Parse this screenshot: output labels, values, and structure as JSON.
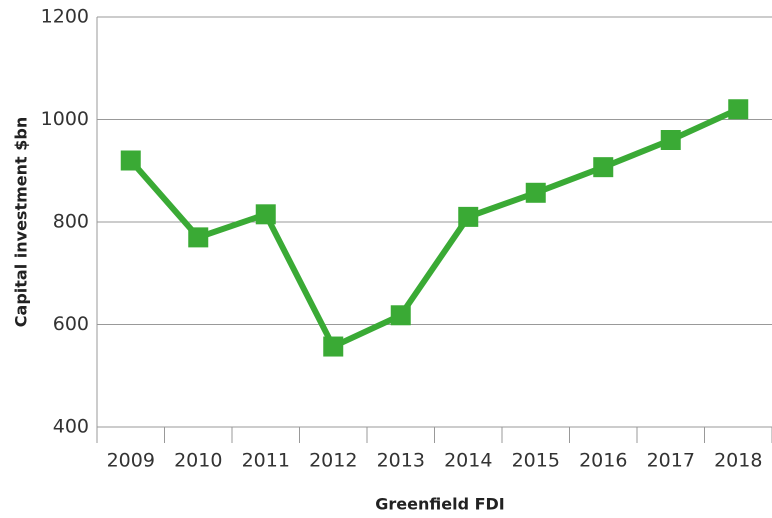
{
  "chart_data": {
    "type": "line",
    "y_label": "Capital investment $bn",
    "x_label": "Greenfield FDI",
    "categories": [
      "2009",
      "2010",
      "2011",
      "2012",
      "2013",
      "2014",
      "2015",
      "2016",
      "2017",
      "2018"
    ],
    "values": [
      920,
      770,
      815,
      557,
      618,
      810,
      857,
      907,
      960,
      1020
    ],
    "color": "#3aaa35",
    "ylim": [
      400,
      1200
    ],
    "yticks": [
      400,
      600,
      800,
      1000,
      1200
    ],
    "grid": true
  }
}
